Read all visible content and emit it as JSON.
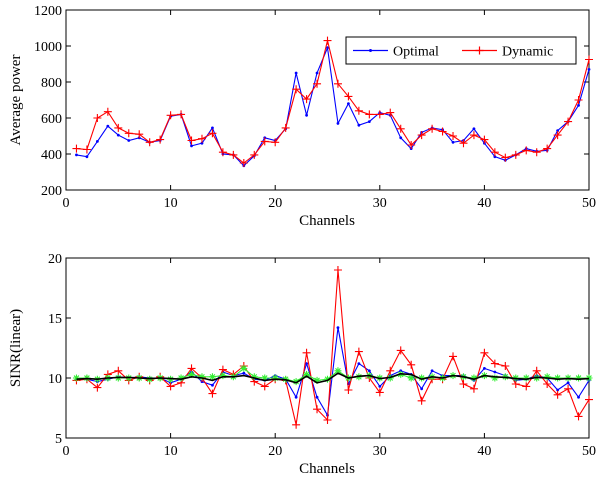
{
  "chart_data": [
    {
      "type": "line",
      "xlabel": "Channels",
      "ylabel": "Average power",
      "xlim": [
        0,
        50
      ],
      "ylim": [
        200,
        1200
      ],
      "xticks": [
        0,
        10,
        20,
        30,
        40,
        50
      ],
      "yticks": [
        200,
        400,
        600,
        800,
        1000,
        1200
      ],
      "grid": false,
      "legend": "top-right",
      "series": [
        {
          "name": "Optimal",
          "color": "#0000ff",
          "marker": "dot",
          "x": [
            1,
            2,
            3,
            4,
            5,
            6,
            7,
            8,
            9,
            10,
            11,
            12,
            13,
            14,
            15,
            16,
            17,
            18,
            19,
            20,
            21,
            22,
            23,
            24,
            25,
            26,
            27,
            28,
            29,
            30,
            31,
            32,
            33,
            34,
            35,
            36,
            37,
            38,
            39,
            40,
            41,
            42,
            43,
            44,
            45,
            46,
            47,
            48,
            49,
            50
          ],
          "values": [
            395,
            385,
            470,
            555,
            505,
            475,
            490,
            465,
            475,
            610,
            620,
            445,
            460,
            545,
            400,
            395,
            335,
            390,
            490,
            475,
            540,
            850,
            615,
            850,
            990,
            570,
            680,
            560,
            580,
            630,
            615,
            490,
            430,
            520,
            545,
            535,
            465,
            475,
            540,
            460,
            385,
            365,
            395,
            430,
            415,
            420,
            530,
            580,
            670,
            870
          ]
        },
        {
          "name": "Dynamic",
          "color": "#ff0000",
          "marker": "plus",
          "x": [
            1,
            2,
            3,
            4,
            5,
            6,
            7,
            8,
            9,
            10,
            11,
            12,
            13,
            14,
            15,
            16,
            17,
            18,
            19,
            20,
            21,
            22,
            23,
            24,
            25,
            26,
            27,
            28,
            29,
            30,
            31,
            32,
            33,
            34,
            35,
            36,
            37,
            38,
            39,
            40,
            41,
            42,
            43,
            44,
            45,
            46,
            47,
            48,
            49,
            50
          ],
          "values": [
            430,
            425,
            600,
            635,
            545,
            515,
            510,
            465,
            480,
            615,
            620,
            475,
            485,
            515,
            410,
            395,
            350,
            395,
            470,
            465,
            545,
            760,
            705,
            790,
            1030,
            790,
            720,
            640,
            620,
            620,
            630,
            540,
            450,
            505,
            540,
            525,
            500,
            460,
            505,
            480,
            410,
            380,
            395,
            420,
            410,
            430,
            505,
            580,
            700,
            925
          ]
        }
      ]
    },
    {
      "type": "line",
      "xlabel": "Channels",
      "ylabel": "SINR(linear)",
      "xlim": [
        0,
        50
      ],
      "ylim": [
        5,
        20
      ],
      "xticks": [
        0,
        10,
        20,
        30,
        40,
        50
      ],
      "yticks": [
        5,
        10,
        15,
        20
      ],
      "grid": false,
      "series": [
        {
          "color": "#0000ff",
          "marker": "dot",
          "x": [
            1,
            2,
            3,
            4,
            5,
            6,
            7,
            8,
            9,
            10,
            11,
            12,
            13,
            14,
            15,
            16,
            17,
            18,
            19,
            20,
            21,
            22,
            23,
            24,
            25,
            26,
            27,
            28,
            29,
            30,
            31,
            32,
            33,
            34,
            35,
            36,
            37,
            38,
            39,
            40,
            41,
            42,
            43,
            44,
            45,
            46,
            47,
            48,
            49,
            50
          ],
          "values": [
            9.9,
            9.9,
            9.7,
            9.9,
            10.1,
            10.0,
            10.1,
            10.0,
            10.0,
            9.6,
            9.9,
            10.5,
            9.7,
            9.4,
            10.5,
            10.2,
            10.4,
            9.9,
            9.8,
            10.2,
            9.9,
            8.4,
            11.2,
            8.4,
            6.9,
            14.2,
            9.5,
            11.2,
            10.6,
            9.3,
            10.2,
            10.6,
            10.3,
            9.1,
            10.6,
            10.2,
            10.2,
            10.2,
            9.8,
            10.8,
            10.5,
            10.2,
            9.8,
            9.9,
            10.2,
            10.0,
            9.0,
            9.6,
            8.4,
            9.8
          ]
        },
        {
          "color": "#ff0000",
          "marker": "plus",
          "x": [
            1,
            2,
            3,
            4,
            5,
            6,
            7,
            8,
            9,
            10,
            11,
            12,
            13,
            14,
            15,
            16,
            17,
            18,
            19,
            20,
            21,
            22,
            23,
            24,
            25,
            26,
            27,
            28,
            29,
            30,
            31,
            32,
            33,
            34,
            35,
            36,
            37,
            38,
            39,
            40,
            41,
            42,
            43,
            44,
            45,
            46,
            47,
            48,
            49,
            50
          ],
          "values": [
            9.8,
            9.9,
            9.2,
            10.3,
            10.6,
            9.8,
            10.1,
            9.8,
            10.1,
            9.3,
            9.6,
            10.8,
            10.0,
            8.7,
            10.7,
            10.3,
            11.0,
            9.7,
            9.3,
            9.9,
            9.8,
            6.1,
            12.1,
            7.4,
            6.5,
            19.0,
            9.0,
            12.2,
            10.0,
            8.8,
            10.6,
            12.3,
            11.1,
            8.1,
            9.9,
            9.9,
            11.8,
            9.5,
            9.1,
            12.1,
            11.2,
            11.0,
            9.5,
            9.3,
            10.6,
            9.5,
            8.6,
            9.1,
            6.8,
            8.2
          ]
        },
        {
          "color": "#33ee33",
          "marker": "star",
          "x": [
            1,
            2,
            3,
            4,
            5,
            6,
            7,
            8,
            9,
            10,
            11,
            12,
            13,
            14,
            15,
            16,
            17,
            18,
            19,
            20,
            21,
            22,
            23,
            24,
            25,
            26,
            27,
            28,
            29,
            30,
            31,
            32,
            33,
            34,
            35,
            36,
            37,
            38,
            39,
            40,
            41,
            42,
            43,
            44,
            45,
            46,
            47,
            48,
            49,
            50
          ],
          "values": [
            10.0,
            10.0,
            9.9,
            10.0,
            10.0,
            10.0,
            10.0,
            9.9,
            10.0,
            9.9,
            10.0,
            10.3,
            10.1,
            10.1,
            10.2,
            10.1,
            10.8,
            10.1,
            10.0,
            10.0,
            9.9,
            9.7,
            10.3,
            9.8,
            9.9,
            10.6,
            10.0,
            10.1,
            10.2,
            10.0,
            10.0,
            10.3,
            10.0,
            10.0,
            10.1,
            10.0,
            10.2,
            10.1,
            10.0,
            10.2,
            10.0,
            10.1,
            10.0,
            10.0,
            10.0,
            10.1,
            10.0,
            10.0,
            10.0,
            10.0
          ]
        },
        {
          "color": "#000000",
          "marker": "none",
          "x": [
            1,
            2,
            3,
            4,
            5,
            6,
            7,
            8,
            9,
            10,
            11,
            12,
            13,
            14,
            15,
            16,
            17,
            18,
            19,
            20,
            21,
            22,
            23,
            24,
            25,
            26,
            27,
            28,
            29,
            30,
            31,
            32,
            33,
            34,
            35,
            36,
            37,
            38,
            39,
            40,
            41,
            42,
            43,
            44,
            45,
            46,
            47,
            48,
            49,
            50
          ],
          "values": [
            9.9,
            9.95,
            9.9,
            10.0,
            10.05,
            10.05,
            10.0,
            9.95,
            10.0,
            9.95,
            9.9,
            10.1,
            10.0,
            9.8,
            10.1,
            10.1,
            10.2,
            10.0,
            9.8,
            9.9,
            9.85,
            9.6,
            10.15,
            9.6,
            9.8,
            10.4,
            10.0,
            10.15,
            10.2,
            9.95,
            10.05,
            10.35,
            10.3,
            9.9,
            10.1,
            10.0,
            10.2,
            10.1,
            9.9,
            10.2,
            10.1,
            10.05,
            9.95,
            9.9,
            10.05,
            10.0,
            9.9,
            9.95,
            9.9,
            9.95
          ]
        }
      ]
    }
  ]
}
